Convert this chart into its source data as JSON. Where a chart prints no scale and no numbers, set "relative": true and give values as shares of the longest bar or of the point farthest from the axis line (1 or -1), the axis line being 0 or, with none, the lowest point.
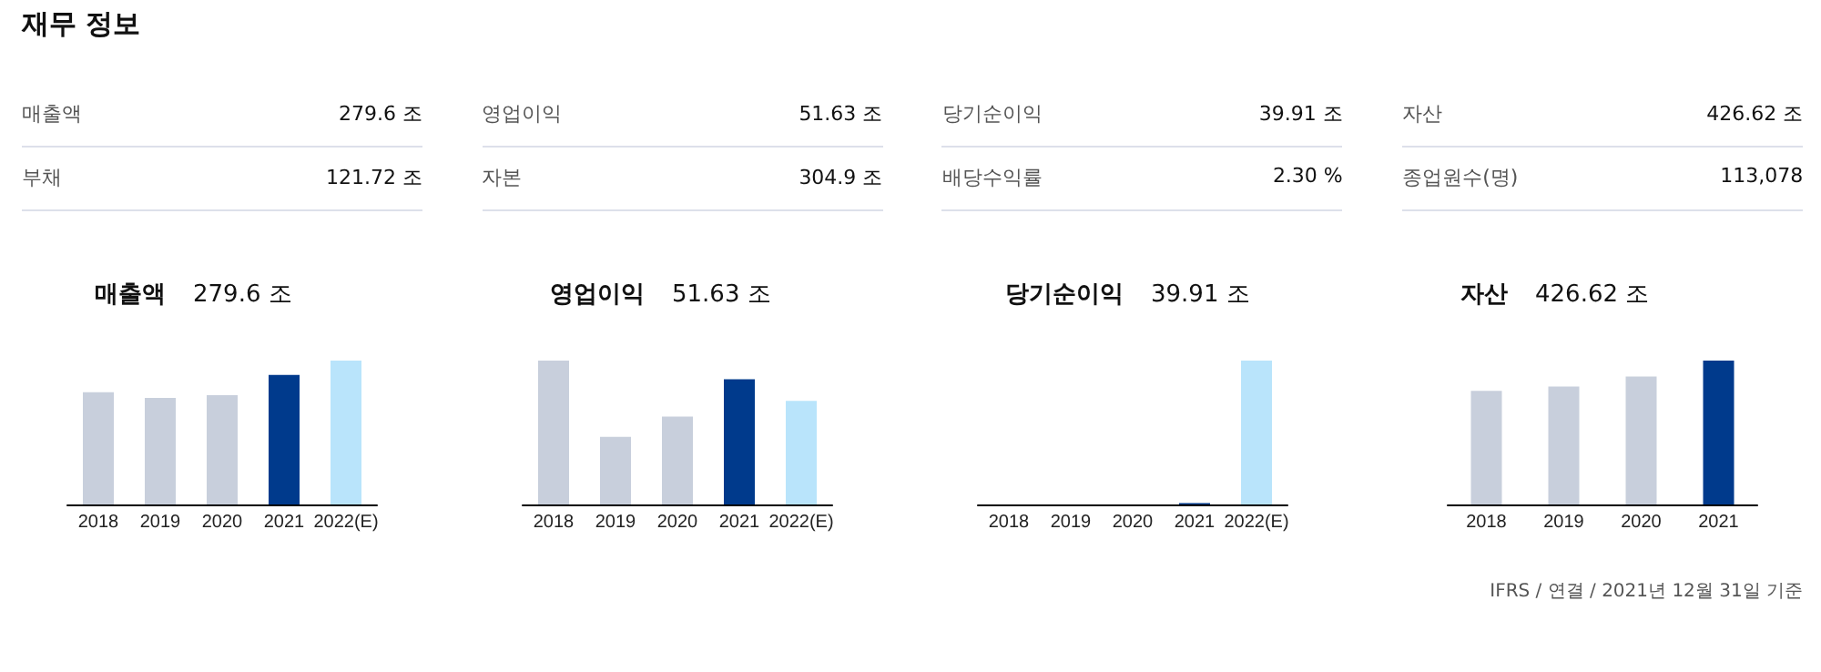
{
  "chart_data": [
    {
      "type": "other",
      "title": "재무 정보",
      "annotations": [
        "매출액",
        "279.6 조",
        "영업이익",
        "51.63 조",
        "당기순이익",
        "39.91 조",
        "자산",
        "426.62 조",
        "부채",
        "121.72 조",
        "자본",
        "304.9 조",
        "배당수익률",
        "2.30 %",
        "종업원수(명)",
        "113,078"
      ]
    },
    {
      "type": "bar",
      "title": "매출액",
      "subtitle": "279.6 조",
      "relative": true,
      "categories": [
        "2018",
        "2019",
        "2020",
        "2021",
        "2022(E)"
      ],
      "values": [
        0.78,
        0.74,
        0.76,
        0.9,
        1
      ],
      "colors": [
        "#c8cfdc",
        "#c8cfdc",
        "#c8cfdc",
        "#003a8c",
        "#b9e4fb"
      ]
    },
    {
      "type": "bar",
      "title": "영업이익",
      "subtitle": "51.63 조",
      "relative": true,
      "categories": [
        "2018",
        "2019",
        "2020",
        "2021",
        "2022(E)"
      ],
      "values": [
        1,
        0.47,
        0.61,
        0.87,
        0.72
      ],
      "colors": [
        "#c8cfdc",
        "#c8cfdc",
        "#c8cfdc",
        "#003a8c",
        "#b9e4fb"
      ]
    },
    {
      "type": "bar",
      "title": "당기순이익",
      "subtitle": "39.91 조",
      "relative": true,
      "categories": [
        "2018",
        "2019",
        "2020",
        "2021",
        "2022(E)"
      ],
      "values": [
        null,
        null,
        null,
        0.01,
        1
      ],
      "colors": [
        "#c8cfdc",
        "#c8cfdc",
        "#c8cfdc",
        "#003a8c",
        "#b9e4fb"
      ]
    },
    {
      "type": "bar",
      "title": "자산",
      "subtitle": "426.62 조",
      "relative": true,
      "categories": [
        "2018",
        "2019",
        "2020",
        "2021"
      ],
      "values": [
        0.79,
        0.82,
        0.89,
        1
      ],
      "colors": [
        "#c8cfdc",
        "#c8cfdc",
        "#c8cfdc",
        "#003a8c"
      ],
      "annotations": [
        "IFRS / 연결 / 2021년 12월 31일 기준"
      ]
    }
  ]
}
